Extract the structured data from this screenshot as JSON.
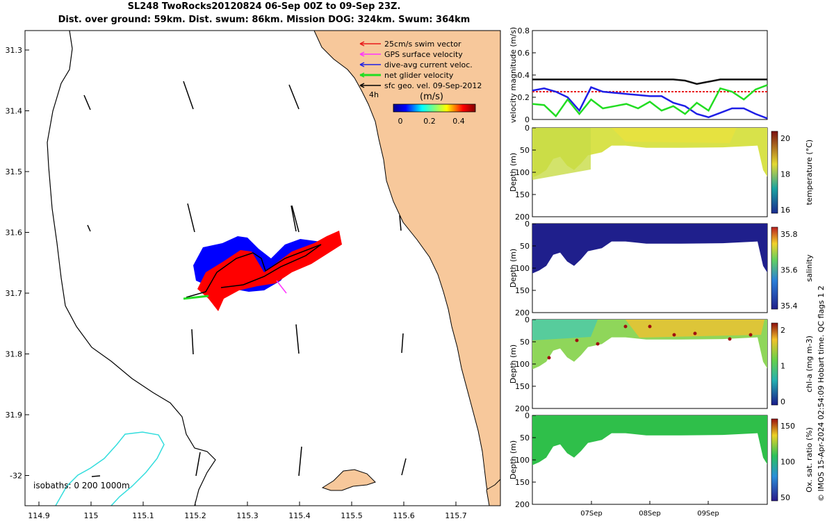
{
  "title": {
    "line1": "SL248 TwoRocks20120824 06-Sep 00Z to 09-Sep 23Z.",
    "line2": "Dist. over ground: 59km. Dist. swum: 86km. Mission DOG: 324km. Swum: 364km"
  },
  "map": {
    "x_ticks": [
      "114.9",
      "115",
      "115.1",
      "115.2",
      "115.3",
      "115.4",
      "115.5",
      "115.6",
      "115.7"
    ],
    "y_ticks": [
      "31.3",
      "31.4",
      "31.5",
      "31.6",
      "31.7",
      "31.8",
      "31.9",
      "-32"
    ],
    "legend": [
      {
        "label": "25cm/s swim vector",
        "color": "#e8191a"
      },
      {
        "label": "GPS surface velocity",
        "color": "#ff33ff"
      },
      {
        "label": "dive-avg current veloc.",
        "color": "#1f1fe6"
      },
      {
        "label": "net glider velocity",
        "color": "#22dd22"
      },
      {
        "label": "sfc geo. vel. 09-Sep-2012",
        "color": "#000000"
      }
    ],
    "time_label": "4h",
    "colorbar_unit": "(m/s)",
    "colorbar_ticks": [
      "0",
      "0.2",
      "0.4"
    ],
    "isobaths_label": "isobaths: 0   200  1000m",
    "colors": {
      "land": "#f7c89b",
      "swim": "#ff0000",
      "current": "#0000ff",
      "net": "#22dd22",
      "isobath": "#33dddd"
    }
  },
  "chart_data": [
    {
      "type": "line",
      "title": "",
      "ylabel": "velocity magnitude (m/s)",
      "ylim": [
        0,
        0.8
      ],
      "y_ticks": [
        "0",
        "0.2",
        "0.4",
        "0.6",
        "0.8"
      ],
      "x": [
        0,
        5,
        10,
        15,
        20,
        25,
        30,
        35,
        40,
        45,
        50,
        55,
        60,
        65,
        70,
        75,
        80,
        85,
        90,
        95,
        100
      ],
      "series": [
        {
          "name": "sfc geo. vel.",
          "color": "#111111",
          "values": [
            0.36,
            0.36,
            0.36,
            0.36,
            0.36,
            0.36,
            0.36,
            0.36,
            0.36,
            0.36,
            0.36,
            0.36,
            0.36,
            0.35,
            0.32,
            0.34,
            0.36,
            0.36,
            0.36,
            0.36,
            0.36
          ]
        },
        {
          "name": "swim speed",
          "color": "#e8191a",
          "values": [
            0.25,
            0.25,
            0.25,
            0.25,
            0.25,
            0.25,
            0.25,
            0.25,
            0.25,
            0.25,
            0.25,
            0.25,
            0.25,
            0.25,
            0.25,
            0.25,
            0.25,
            0.25,
            0.25,
            0.25,
            0.25
          ]
        },
        {
          "name": "dive-avg current",
          "color": "#1f1fe6",
          "values": [
            0.26,
            0.28,
            0.25,
            0.2,
            0.08,
            0.29,
            0.25,
            0.24,
            0.23,
            0.22,
            0.21,
            0.21,
            0.15,
            0.12,
            0.05,
            0.02,
            0.06,
            0.1,
            0.1,
            0.05,
            0.01
          ]
        },
        {
          "name": "net glider velocity",
          "color": "#22dd22",
          "values": [
            0.14,
            0.13,
            0.03,
            0.18,
            0.05,
            0.18,
            0.1,
            0.12,
            0.14,
            0.1,
            0.16,
            0.08,
            0.12,
            0.05,
            0.15,
            0.08,
            0.28,
            0.25,
            0.18,
            0.27,
            0.31
          ]
        }
      ]
    },
    {
      "type": "heatmap",
      "ylabel": "Depth (m)",
      "clabel": "temperature (°C)",
      "y_ticks": [
        "0",
        "50",
        "100",
        "150",
        "200"
      ],
      "cbar_ticks": [
        "16",
        "18",
        "20"
      ]
    },
    {
      "type": "heatmap",
      "ylabel": "Depth (m)",
      "clabel": "salinity",
      "y_ticks": [
        "0",
        "50",
        "100",
        "150",
        "200"
      ],
      "cbar_ticks": [
        "35.4",
        "35.6",
        "35.8"
      ]
    },
    {
      "type": "heatmap",
      "ylabel": "Depth (m)",
      "clabel": "chl-a (mg m-3)",
      "y_ticks": [
        "0",
        "50",
        "100",
        "150",
        "200"
      ],
      "cbar_ticks": [
        "0",
        "1",
        "2"
      ]
    },
    {
      "type": "heatmap",
      "ylabel": "Depth (m)",
      "clabel": "Ox. sat. ratio (%)",
      "y_ticks": [
        "0",
        "50",
        "100",
        "150",
        "200"
      ],
      "cbar_ticks": [
        "50",
        "100",
        "150"
      ],
      "x_ticks": [
        "07Sep",
        "08Sep",
        "09Sep"
      ]
    }
  ],
  "footer": "© IMOS 15-Apr-2024 02:54:09 Hobart time. QC flags 1  2"
}
